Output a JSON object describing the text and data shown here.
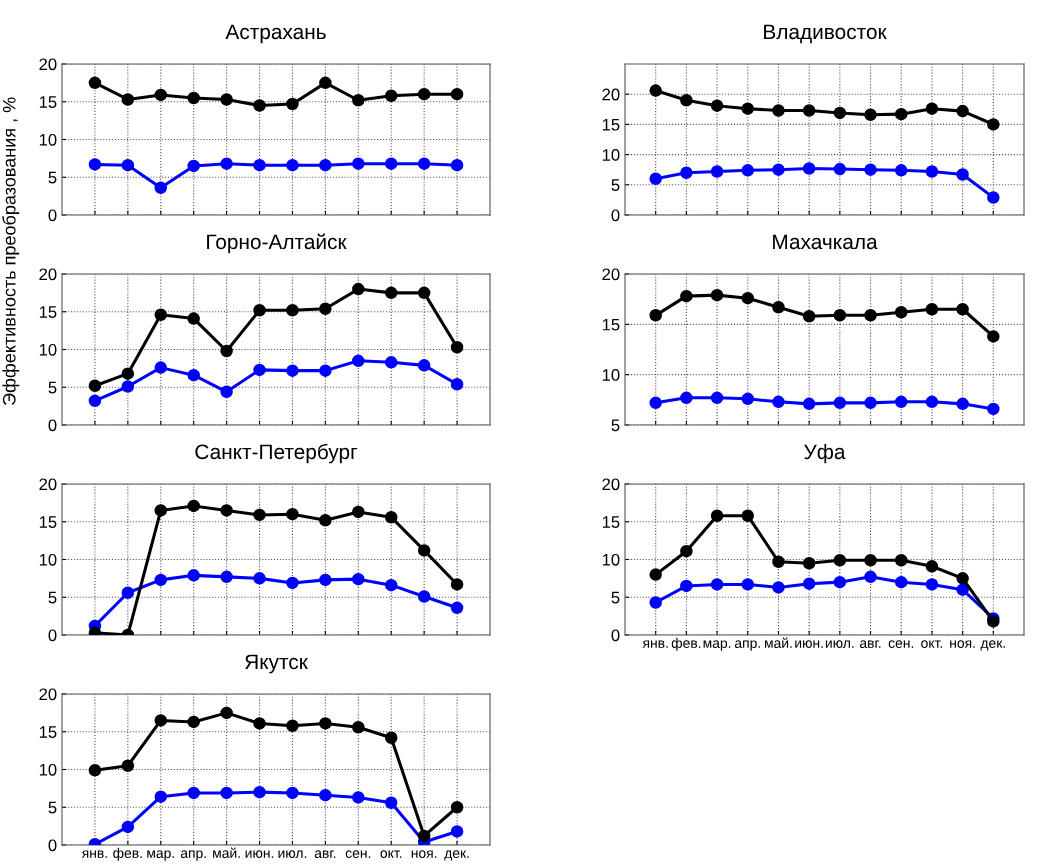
{
  "chart_data": [
    {
      "type": "line",
      "title": "Астрахань",
      "categories": [
        null,
        null,
        null,
        null,
        null,
        null,
        null,
        null,
        null,
        null,
        null,
        null
      ],
      "ylim": [
        0,
        20
      ],
      "yticks": [
        0,
        5,
        10,
        15,
        20
      ],
      "grid": true,
      "marker": "circle",
      "series": [
        {
          "color": "#0000ff",
          "values": [
            6.7,
            6.6,
            3.6,
            6.5,
            6.8,
            6.6,
            6.6,
            6.6,
            6.8,
            6.8,
            6.8,
            6.6
          ]
        },
        {
          "color": "#000000",
          "values": [
            17.5,
            15.3,
            15.9,
            15.5,
            15.3,
            14.5,
            14.7,
            17.5,
            15.2,
            15.8,
            16,
            16
          ]
        }
      ]
    },
    {
      "type": "line",
      "title": "Владивосток",
      "categories": [
        null,
        null,
        null,
        null,
        null,
        null,
        null,
        null,
        null,
        null,
        null,
        null
      ],
      "ylim": [
        0,
        25
      ],
      "yticks": [
        0,
        5,
        10,
        15,
        20
      ],
      "grid": true,
      "marker": "circle",
      "series": [
        {
          "color": "#0000ff",
          "values": [
            6.0,
            7.0,
            7.2,
            7.4,
            7.5,
            7.7,
            7.6,
            7.5,
            7.4,
            7.2,
            6.7,
            2.9
          ]
        },
        {
          "color": "#000000",
          "values": [
            20.6,
            19.0,
            18.1,
            17.6,
            17.3,
            17.3,
            16.9,
            16.6,
            16.7,
            17.6,
            17.2,
            15.0
          ]
        }
      ]
    },
    {
      "type": "line",
      "title": "Горно-Алтайск",
      "ylabel": "Эффективность преобразования , %",
      "categories": [
        null,
        null,
        null,
        null,
        null,
        null,
        null,
        null,
        null,
        null,
        null,
        null
      ],
      "ylim": [
        0,
        20
      ],
      "yticks": [
        0,
        5,
        10,
        15,
        20
      ],
      "grid": true,
      "marker": "circle",
      "series": [
        {
          "color": "#0000ff",
          "values": [
            3.2,
            5.1,
            7.6,
            6.6,
            4.4,
            7.3,
            7.2,
            7.2,
            8.5,
            8.3,
            7.9,
            5.4
          ]
        },
        {
          "color": "#000000",
          "values": [
            5.2,
            6.8,
            14.6,
            14.1,
            9.8,
            15.2,
            15.2,
            15.4,
            18,
            17.5,
            17.5,
            10.3
          ]
        }
      ]
    },
    {
      "type": "line",
      "title": "Махачкала",
      "categories": [
        null,
        null,
        null,
        null,
        null,
        null,
        null,
        null,
        null,
        null,
        null,
        null
      ],
      "ylim": [
        5,
        20
      ],
      "yticks": [
        5,
        10,
        15,
        20
      ],
      "grid": true,
      "marker": "circle",
      "series": [
        {
          "color": "#0000ff",
          "values": [
            7.2,
            7.7,
            7.7,
            7.6,
            7.3,
            7.1,
            7.2,
            7.2,
            7.3,
            7.3,
            7.1,
            6.6
          ]
        },
        {
          "color": "#000000",
          "values": [
            15.9,
            17.8,
            17.9,
            17.6,
            16.7,
            15.8,
            15.9,
            15.9,
            16.2,
            16.5,
            16.5,
            13.8
          ]
        }
      ]
    },
    {
      "type": "line",
      "title": "Санкт-Петербург",
      "categories": [
        null,
        null,
        null,
        null,
        null,
        null,
        null,
        null,
        null,
        null,
        null,
        null
      ],
      "ylim": [
        0,
        20
      ],
      "yticks": [
        0,
        5,
        10,
        15,
        20
      ],
      "grid": true,
      "marker": "circle",
      "series": [
        {
          "color": "#0000ff",
          "values": [
            1.2,
            5.6,
            7.3,
            7.9,
            7.7,
            7.5,
            6.9,
            7.3,
            7.4,
            6.6,
            5.1,
            3.6
          ]
        },
        {
          "color": "#000000",
          "values": [
            0.3,
            0,
            16.5,
            17.1,
            16.5,
            15.9,
            16,
            15.2,
            16.3,
            15.6,
            11.2,
            6.7
          ]
        }
      ]
    },
    {
      "type": "line",
      "title": "Уфа",
      "categories": [
        "янв.",
        "фев.",
        "мар.",
        "апр.",
        "май.",
        "июн.",
        "июл.",
        "авг.",
        "сен.",
        "окт.",
        "ноя.",
        "дек."
      ],
      "ylim": [
        0,
        20
      ],
      "yticks": [
        0,
        5,
        10,
        15,
        20
      ],
      "grid": true,
      "marker": "circle",
      "series": [
        {
          "color": "#0000ff",
          "values": [
            4.3,
            6.5,
            6.7,
            6.7,
            6.3,
            6.8,
            7.0,
            7.7,
            7.0,
            6.7,
            6.0,
            2.2
          ]
        },
        {
          "color": "#000000",
          "values": [
            8.0,
            11.1,
            15.8,
            15.8,
            9.7,
            9.5,
            9.9,
            9.9,
            9.9,
            9.1,
            7.5,
            1.8
          ]
        }
      ]
    },
    {
      "type": "line",
      "title": "Якутск",
      "categories": [
        "янв.",
        "фев.",
        "мар.",
        "апр.",
        "май.",
        "июн.",
        "июл.",
        "авг.",
        "сен.",
        "окт.",
        "ноя.",
        "дек."
      ],
      "ylim": [
        0,
        20
      ],
      "yticks": [
        0,
        5,
        10,
        15,
        20
      ],
      "grid": true,
      "marker": "circle",
      "series": [
        {
          "color": "#0000ff",
          "values": [
            0.1,
            2.4,
            6.4,
            6.9,
            6.9,
            7.0,
            6.9,
            6.6,
            6.3,
            5.6,
            0.4,
            1.8
          ]
        },
        {
          "color": "#000000",
          "values": [
            9.9,
            10.5,
            16.5,
            16.3,
            17.5,
            16.1,
            15.8,
            16.1,
            15.6,
            14.2,
            1.2,
            5
          ]
        }
      ]
    }
  ]
}
